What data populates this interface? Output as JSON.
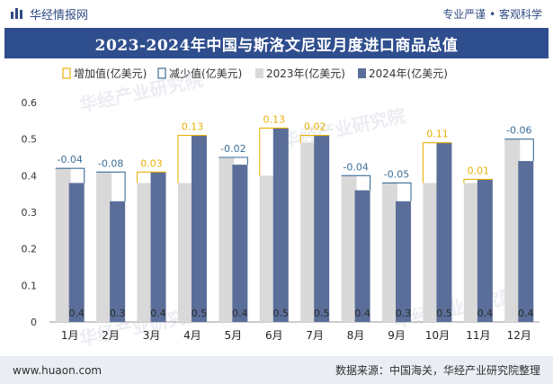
{
  "header": {
    "brand_name": "华经情报网",
    "tagline": "专业严谨 • 客观科学"
  },
  "footer": {
    "site": "www.huaon.com",
    "source": "数据来源：中国海关，华经产业研究院整理"
  },
  "watermark": "华经产业研究院",
  "colors": {
    "s2023": "#d9d9d9",
    "s2024": "#5b6e99",
    "increase": "#e8b10a",
    "decrease": "#3d6e97",
    "title_bg": "#2f4e8e"
  },
  "chart_data": {
    "type": "bar",
    "title": "2023-2024年中国与斯洛文尼亚月度进口商品总值",
    "categories": [
      "1月",
      "2月",
      "3月",
      "4月",
      "5月",
      "6月",
      "7月",
      "8月",
      "9月",
      "10月",
      "11月",
      "12月"
    ],
    "series": [
      {
        "name": "2023年(亿美元)",
        "values": [
          0.42,
          0.41,
          0.38,
          0.38,
          0.45,
          0.4,
          0.49,
          0.4,
          0.38,
          0.38,
          0.38,
          0.5
        ]
      },
      {
        "name": "2024年(亿美元)",
        "values": [
          0.38,
          0.33,
          0.41,
          0.51,
          0.43,
          0.53,
          0.51,
          0.36,
          0.33,
          0.49,
          0.39,
          0.44
        ]
      }
    ],
    "bar_labels_2024": [
      "0.4",
      "0.3",
      "0.4",
      "0.5",
      "0.4",
      "0.5",
      "0.5",
      "0.4",
      "0.3",
      "0.5",
      "0.4",
      "0.4"
    ],
    "changes": [
      -0.04,
      -0.08,
      0.03,
      0.13,
      -0.02,
      0.13,
      0.02,
      -0.04,
      -0.05,
      0.11,
      0.01,
      -0.06
    ],
    "change_labels": [
      "-0.04",
      "-0.08",
      "0.03",
      "0.13",
      "-0.02",
      "0.13",
      "0.02",
      "-0.04",
      "-0.05",
      "0.11",
      "0.01",
      "-0.06"
    ],
    "legend": [
      "增加值(亿美元)",
      "减少值(亿美元)",
      "2023年(亿美元)",
      "2024年(亿美元)"
    ],
    "ylim": [
      0,
      0.6
    ],
    "yticks": [
      "0",
      "0.1",
      "0.2",
      "0.3",
      "0.4",
      "0.5",
      "0.6"
    ]
  }
}
